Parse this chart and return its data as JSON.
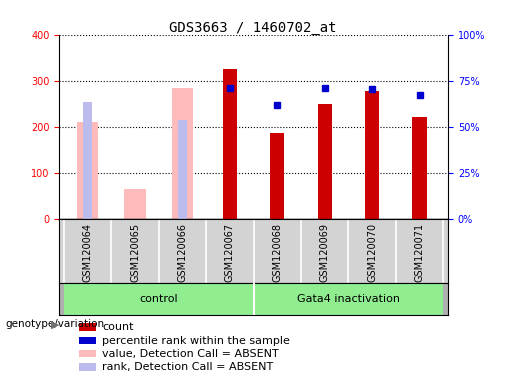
{
  "title": "GDS3663 / 1460702_at",
  "samples": [
    "GSM120064",
    "GSM120065",
    "GSM120066",
    "GSM120067",
    "GSM120068",
    "GSM120069",
    "GSM120070",
    "GSM120071"
  ],
  "count_values": [
    null,
    null,
    null,
    325,
    187,
    250,
    278,
    222
  ],
  "percentile_rank_left": [
    null,
    null,
    null,
    285,
    248,
    285,
    282,
    270
  ],
  "absent_value": [
    210,
    65,
    285,
    null,
    null,
    null,
    null,
    null
  ],
  "absent_rank": [
    253,
    null,
    215,
    null,
    null,
    null,
    null,
    null
  ],
  "groups": [
    {
      "label": "control",
      "start": 0,
      "end": 3,
      "color": "#90ee90"
    },
    {
      "label": "Gata4 inactivation",
      "start": 4,
      "end": 7,
      "color": "#90ee90"
    }
  ],
  "ylim_left": [
    0,
    400
  ],
  "ylim_right": [
    0,
    100
  ],
  "yticks_left": [
    0,
    100,
    200,
    300,
    400
  ],
  "ytick_labels_left": [
    "0",
    "100",
    "200",
    "300",
    "400"
  ],
  "yticks_right_pct": [
    0,
    25,
    50,
    75,
    100
  ],
  "ytick_labels_right": [
    "0%",
    "25%",
    "50%",
    "75%",
    "100%"
  ],
  "count_color": "#cc0000",
  "percentile_color": "#0000cc",
  "absent_value_color": "#ffbbbb",
  "absent_rank_color": "#bbbbee",
  "legend_entries": [
    {
      "label": "count",
      "color": "#cc0000"
    },
    {
      "label": "percentile rank within the sample",
      "color": "#0000cc"
    },
    {
      "label": "value, Detection Call = ABSENT",
      "color": "#ffbbbb"
    },
    {
      "label": "rank, Detection Call = ABSENT",
      "color": "#bbbbee"
    }
  ],
  "genotype_label": "genotype/variation",
  "plot_bg_color": "#ffffff",
  "tick_label_bg": "#d3d3d3",
  "geno_bg": "#b0b0b0",
  "title_fontsize": 10,
  "tick_fontsize": 7,
  "legend_fontsize": 8
}
